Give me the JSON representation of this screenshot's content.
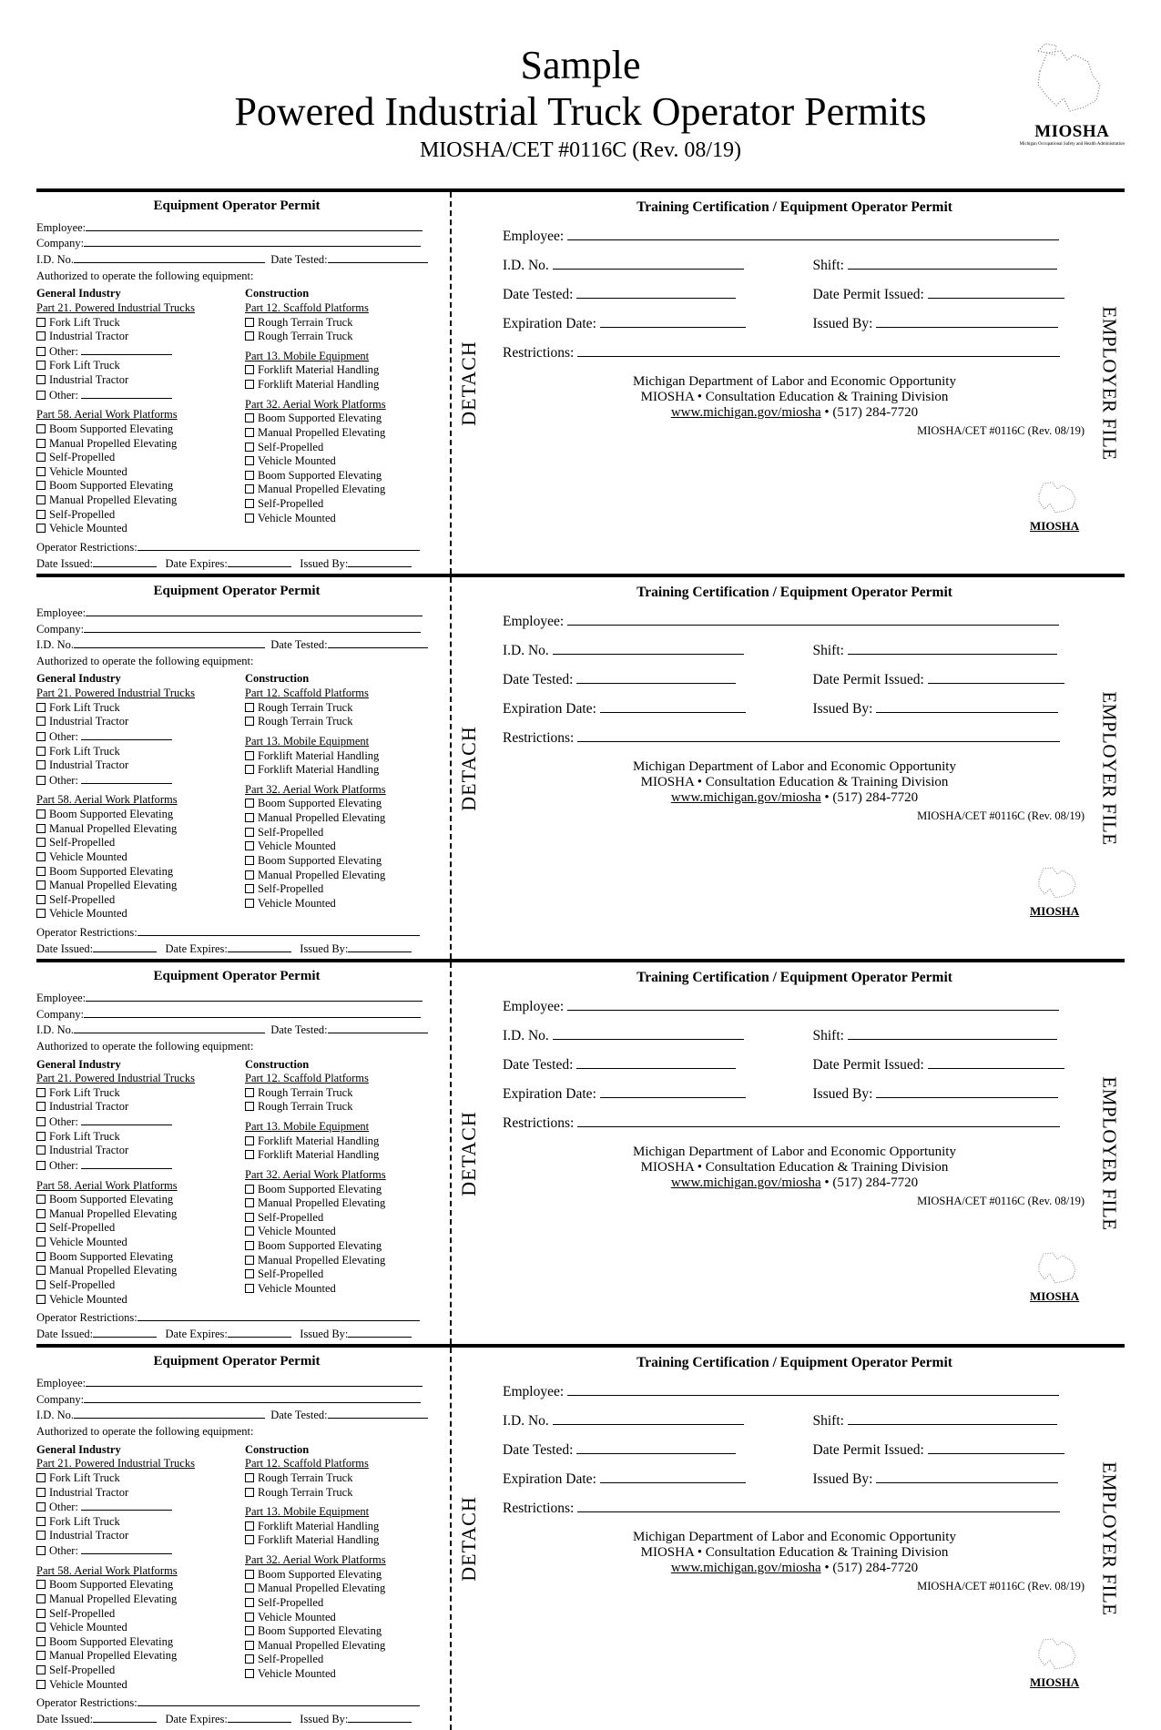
{
  "title_line1": "Sample",
  "title_line2": "Powered Industrial Truck Operator Permits",
  "subtitle": "MIOSHA/CET #0116C (Rev. 08/19)",
  "logo_word": "MIOSHA",
  "logo_sub": "Michigan Occupational Safety and Health Administration",
  "detach_label": "DETACH",
  "employer_file_label": "EMPLOYER FILE",
  "card_count": 4,
  "left": {
    "title": "Equipment Operator Permit",
    "f_employee": "Employee:",
    "f_company": "Company:",
    "f_idno": "I.D. No.",
    "f_datetested": "Date Tested:",
    "auth": "Authorized to operate the following equipment:",
    "col1_head": "General Industry",
    "col2_head": "Construction",
    "p21": "Part 21. Powered Industrial Trucks",
    "p21_items": [
      "Fork Lift Truck",
      "Industrial Tractor",
      "Other:"
    ],
    "p58": "Part 58. Aerial Work Platforms",
    "p58_items": [
      "Boom Supported Elevating",
      "Manual Propelled Elevating",
      "Self-Propelled",
      "Vehicle Mounted"
    ],
    "p12": "Part 12. Scaffold Platforms",
    "p12_items": [
      "Rough Terrain Truck"
    ],
    "p13": "Part 13. Mobile Equipment",
    "p13_items": [
      "Forklift Material Handling"
    ],
    "p32": "Part 32. Aerial Work Platforms",
    "p32_items": [
      "Boom Supported Elevating",
      "Manual Propelled Elevating",
      "Self-Propelled",
      "Vehicle Mounted"
    ],
    "f_restrict": "Operator Restrictions:",
    "f_issued": "Date Issued:",
    "f_expires": "Date Expires:",
    "f_issuedby": "Issued By:"
  },
  "right": {
    "title": "Training Certification / Equipment Operator Permit",
    "f_employee": "Employee:",
    "f_idno": "I.D. No.",
    "f_shift": "Shift:",
    "f_datetested": "Date Tested:",
    "f_permitissued": "Date Permit Issued:",
    "f_expiration": "Expiration Date:",
    "f_issuedby": "Issued By:",
    "f_restrict": "Restrictions:",
    "dept1": "Michigan Department of Labor and Economic Opportunity",
    "dept2": "MIOSHA • Consultation Education & Training Division",
    "web": "www.michigan.gov/miosha",
    "phone": "(517) 284-7720",
    "formno": "MIOSHA/CET #0116C (Rev. 08/19)"
  },
  "colors": {
    "ink": "#000000",
    "paper": "#ffffff",
    "logo_gray": "#888888"
  }
}
